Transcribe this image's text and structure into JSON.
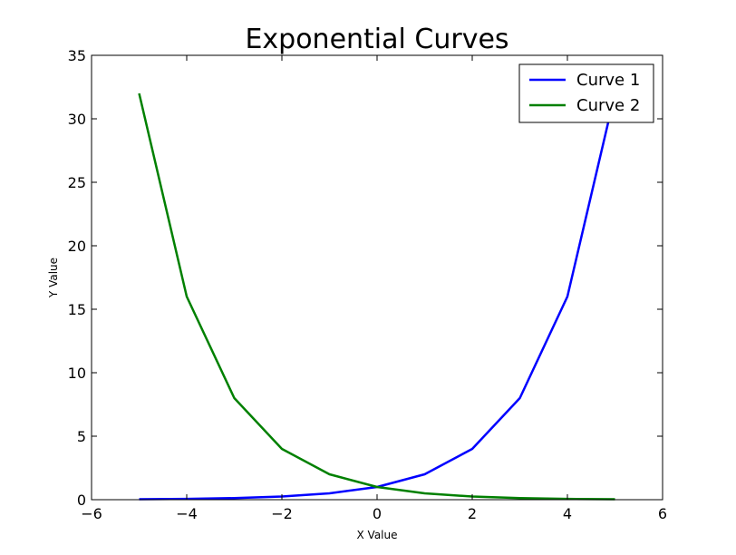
{
  "chart_data": {
    "type": "line",
    "title": "Exponential Curves",
    "xlabel": "X Value",
    "ylabel": "Y Value",
    "xlim": [
      -6,
      6
    ],
    "ylim": [
      0,
      35
    ],
    "xticks": [
      -6,
      -4,
      -2,
      0,
      2,
      4,
      6
    ],
    "yticks": [
      0,
      5,
      10,
      15,
      20,
      25,
      30,
      35
    ],
    "xtick_labels": [
      "−6",
      "−4",
      "−2",
      "0",
      "2",
      "4",
      "6"
    ],
    "ytick_labels": [
      "0",
      "5",
      "10",
      "15",
      "20",
      "25",
      "30",
      "35"
    ],
    "grid": false,
    "legend_position": "top-right",
    "x": [
      -5,
      -4,
      -3,
      -2,
      -1,
      0,
      1,
      2,
      3,
      4,
      5
    ],
    "series": [
      {
        "name": "Curve 1",
        "color": "#0000ff",
        "values": [
          0.03125,
          0.0625,
          0.125,
          0.25,
          0.5,
          1,
          2,
          4,
          8,
          16,
          32
        ]
      },
      {
        "name": "Curve 2",
        "color": "#008000",
        "values": [
          32,
          16,
          8,
          4,
          2,
          1,
          0.5,
          0.25,
          0.125,
          0.0625,
          0.03125
        ]
      }
    ]
  }
}
